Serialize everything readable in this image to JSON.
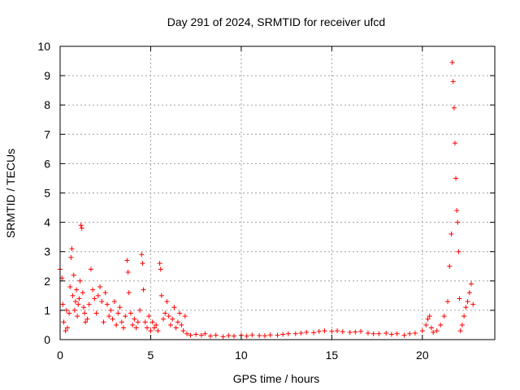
{
  "chart_data": {
    "type": "scatter",
    "title": "Day 291 of 2024, SRMTID for receiver ufcd",
    "xlabel": "GPS time / hours",
    "ylabel": "SRMTID / TECUs",
    "xlim": [
      0,
      24
    ],
    "ylim": [
      0,
      10
    ],
    "grid": true,
    "marker": "+",
    "colors": {
      "points": "#ff0000",
      "grid": "#a0a0a0",
      "axis": "#000000"
    },
    "xticks": [
      0,
      5,
      10,
      15,
      20
    ],
    "yticks": [
      0,
      1,
      2,
      3,
      4,
      5,
      6,
      7,
      8,
      9,
      10
    ],
    "series": [
      {
        "name": "SRMTID",
        "x": [
          0.0,
          0.1,
          0.15,
          0.2,
          0.3,
          0.35,
          0.4,
          0.5,
          0.55,
          0.6,
          0.65,
          0.7,
          0.75,
          0.8,
          0.85,
          0.9,
          0.95,
          1.0,
          1.05,
          1.1,
          1.15,
          1.2,
          1.25,
          1.3,
          1.35,
          1.4,
          1.5,
          1.6,
          1.7,
          1.8,
          1.9,
          2.0,
          2.1,
          2.2,
          2.3,
          2.4,
          2.5,
          2.6,
          2.7,
          2.8,
          2.9,
          3.0,
          3.1,
          3.2,
          3.3,
          3.4,
          3.5,
          3.6,
          3.7,
          3.75,
          3.8,
          3.9,
          4.0,
          4.1,
          4.2,
          4.3,
          4.4,
          4.5,
          4.55,
          4.6,
          4.7,
          4.8,
          4.9,
          5.0,
          5.1,
          5.2,
          5.3,
          5.4,
          5.5,
          5.55,
          5.6,
          5.7,
          5.8,
          5.9,
          6.0,
          6.1,
          6.2,
          6.3,
          6.4,
          6.5,
          6.6,
          6.7,
          6.8,
          6.9,
          7.0,
          7.2,
          7.5,
          7.8,
          8.0,
          8.3,
          8.6,
          9.0,
          9.3,
          9.6,
          10.0,
          10.3,
          10.6,
          11.0,
          11.3,
          11.6,
          12.0,
          12.3,
          12.6,
          13.0,
          13.3,
          13.6,
          14.0,
          14.3,
          14.6,
          15.0,
          15.3,
          15.6,
          16.0,
          16.3,
          16.6,
          17.0,
          17.3,
          17.6,
          18.0,
          18.3,
          18.6,
          19.0,
          19.3,
          19.6,
          20.0,
          20.2,
          20.3,
          20.4,
          20.5,
          20.6,
          20.8,
          21.0,
          21.2,
          21.4,
          21.5,
          21.6,
          21.65,
          21.7,
          21.75,
          21.8,
          21.85,
          21.9,
          21.95,
          22.0,
          22.05,
          22.1,
          22.2,
          22.3,
          22.4,
          22.5,
          22.6,
          22.7,
          22.8
        ],
        "y": [
          2.4,
          2.1,
          1.2,
          0.6,
          0.3,
          1.0,
          0.4,
          0.9,
          1.8,
          2.8,
          3.1,
          1.5,
          2.2,
          1.0,
          1.3,
          1.7,
          0.8,
          1.2,
          1.4,
          2.0,
          3.9,
          3.8,
          1.6,
          1.1,
          0.9,
          0.6,
          0.7,
          1.2,
          2.4,
          1.7,
          1.4,
          0.9,
          1.5,
          1.8,
          1.3,
          0.6,
          1.6,
          1.2,
          0.8,
          1.0,
          0.7,
          1.3,
          0.5,
          0.9,
          1.1,
          0.6,
          0.4,
          0.8,
          2.7,
          2.3,
          1.6,
          0.9,
          0.5,
          0.7,
          0.4,
          0.6,
          1.0,
          2.9,
          2.6,
          1.7,
          0.6,
          0.4,
          0.8,
          0.3,
          0.6,
          0.4,
          0.5,
          0.3,
          2.6,
          2.4,
          1.5,
          0.7,
          0.9,
          1.3,
          0.8,
          0.5,
          0.7,
          1.1,
          0.4,
          0.6,
          0.9,
          0.5,
          0.3,
          0.8,
          0.2,
          0.15,
          0.18,
          0.15,
          0.2,
          0.12,
          0.15,
          0.1,
          0.14,
          0.12,
          0.15,
          0.12,
          0.16,
          0.14,
          0.13,
          0.16,
          0.15,
          0.18,
          0.2,
          0.2,
          0.22,
          0.25,
          0.24,
          0.28,
          0.3,
          0.28,
          0.3,
          0.27,
          0.25,
          0.26,
          0.28,
          0.22,
          0.2,
          0.2,
          0.22,
          0.18,
          0.2,
          0.15,
          0.2,
          0.22,
          0.3,
          0.5,
          0.7,
          0.8,
          0.4,
          0.25,
          0.3,
          0.5,
          0.8,
          1.3,
          2.5,
          3.6,
          9.45,
          8.8,
          7.9,
          6.7,
          5.5,
          4.4,
          4.0,
          3.0,
          1.4,
          0.3,
          0.5,
          0.8,
          1.1,
          1.3,
          1.6,
          1.9,
          1.2
        ]
      }
    ]
  }
}
